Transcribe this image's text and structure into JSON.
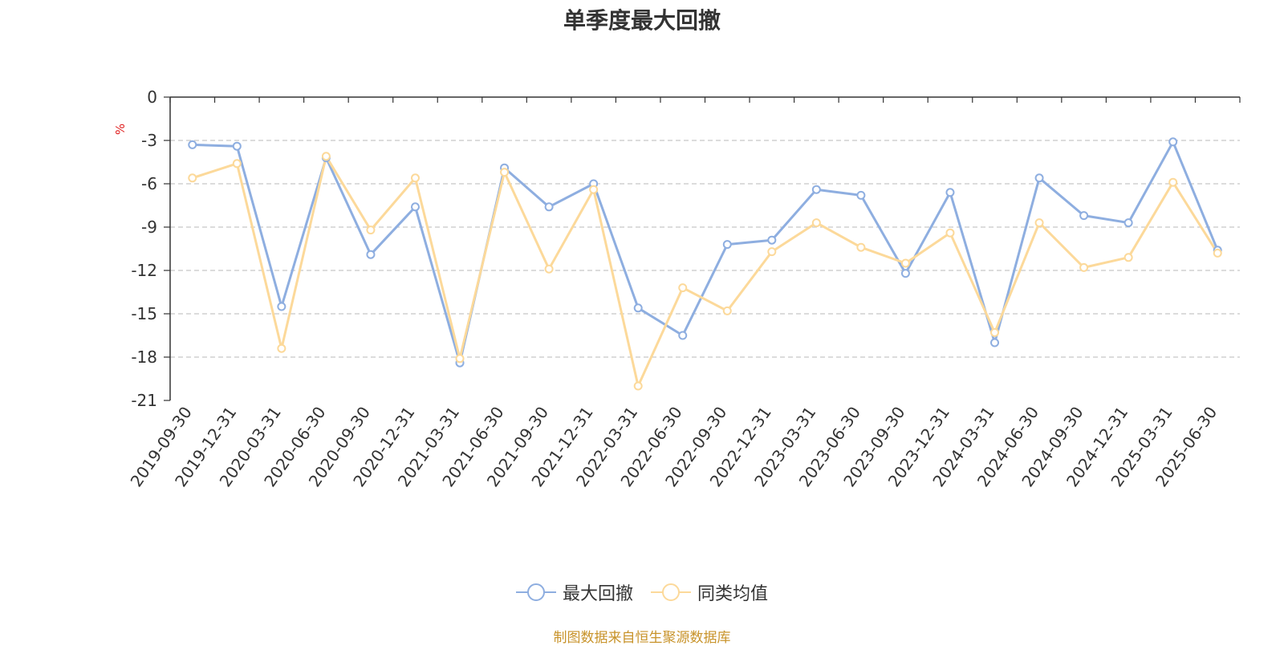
{
  "chart_data": {
    "type": "line",
    "title": "单季度最大回撤",
    "unit": "%",
    "categories": [
      "2019-09-30",
      "2019-12-31",
      "2020-03-31",
      "2020-06-30",
      "2020-09-30",
      "2020-12-31",
      "2021-03-31",
      "2021-06-30",
      "2021-09-30",
      "2021-12-31",
      "2022-03-31",
      "2022-06-30",
      "2022-09-30",
      "2022-12-31",
      "2023-03-31",
      "2023-06-30",
      "2023-09-30",
      "2023-12-31",
      "2024-03-31",
      "2024-06-30",
      "2024-09-30",
      "2024-12-31",
      "2025-03-31",
      "2025-06-30"
    ],
    "series": [
      {
        "name": "最大回撤",
        "color": "#8eaee0",
        "values": [
          -3.3,
          -3.4,
          -14.5,
          -4.2,
          -10.9,
          -7.6,
          -18.4,
          -4.9,
          -7.6,
          -6.0,
          -14.6,
          -16.5,
          -10.2,
          -9.9,
          -6.4,
          -6.8,
          -12.2,
          -6.6,
          -17.0,
          -5.6,
          -8.2,
          -8.7,
          -3.1,
          -10.6
        ]
      },
      {
        "name": "同类均值",
        "color": "#fcd99a",
        "values": [
          -5.6,
          -4.6,
          -17.4,
          -4.1,
          -9.2,
          -5.6,
          -18.1,
          -5.2,
          -11.9,
          -6.4,
          -20.0,
          -13.2,
          -14.8,
          -10.7,
          -8.7,
          -10.4,
          -11.5,
          -9.4,
          -16.3,
          -8.7,
          -11.8,
          -11.1,
          -5.9,
          -10.8
        ]
      }
    ],
    "ylim": [
      -21,
      0
    ],
    "yticks": [
      0,
      -3,
      -6,
      -9,
      -12,
      -15,
      -18,
      -21
    ],
    "grid": true,
    "legend_position": "bottom-center"
  },
  "legend": {
    "item1": "最大回撤",
    "item2": "同类均值"
  },
  "source_text": "制图数据来自恒生聚源数据库"
}
